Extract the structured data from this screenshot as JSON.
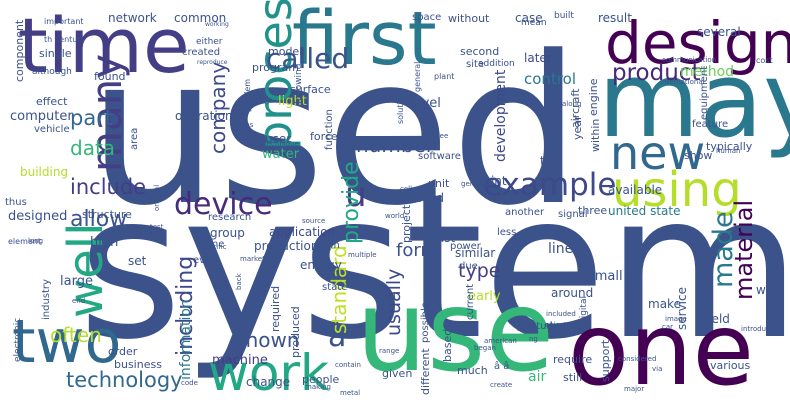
{
  "words": [
    {
      "text": "used",
      "color": "#3b528b",
      "name": "word-used"
    },
    {
      "text": "system",
      "color": "#3b528b",
      "name": "word-system"
    },
    {
      "text": "time",
      "color": "#433e85",
      "name": "word-time"
    },
    {
      "text": "first",
      "color": "#2a788e",
      "name": "word-first"
    },
    {
      "text": "may",
      "color": "#2a788e",
      "name": "word-may"
    },
    {
      "text": "design",
      "color": "#440154",
      "name": "word-design"
    },
    {
      "text": "one",
      "color": "#440154",
      "name": "word-one"
    },
    {
      "text": "use",
      "color": "#35b779",
      "name": "word-use"
    },
    {
      "text": "two",
      "color": "#31688e",
      "name": "word-two"
    },
    {
      "text": "work",
      "color": "#22a884",
      "name": "word-work"
    },
    {
      "text": "new",
      "color": "#31688e",
      "name": "word-new"
    },
    {
      "text": "using",
      "color": "#b5de2b",
      "name": "word-using"
    },
    {
      "text": "process",
      "color": "#21918c",
      "name": "word-process"
    },
    {
      "text": "well",
      "color": "#22a884",
      "name": "word-well"
    },
    {
      "text": "many",
      "color": "#433e85",
      "name": "word-many"
    },
    {
      "text": "example",
      "color": "#3e4989",
      "name": "word-example"
    },
    {
      "text": "device",
      "color": "#472a7a",
      "name": "word-device"
    },
    {
      "text": "called",
      "color": "#3b528b",
      "name": "word-called"
    },
    {
      "text": "product",
      "color": "#482878",
      "name": "word-product"
    },
    {
      "text": "material",
      "color": "#440154",
      "name": "word-material"
    },
    {
      "text": "made",
      "color": "#2a788e",
      "name": "word-made"
    },
    {
      "text": "technology",
      "color": "#31688e",
      "name": "word-technology"
    },
    {
      "text": "known",
      "color": "#3b528b",
      "name": "word-known"
    },
    {
      "text": "â",
      "color": "#3b528b",
      "name": "word-a-circumflex"
    },
    {
      "text": "include",
      "color": "#433e85",
      "name": "word-include"
    },
    {
      "text": "allow",
      "color": "#3b528b",
      "name": "word-allow"
    },
    {
      "text": "part",
      "color": "#31688e",
      "name": "word-part"
    },
    {
      "text": "data",
      "color": "#35b779",
      "name": "word-data"
    },
    {
      "text": "often",
      "color": "#b5de2b",
      "name": "word-often"
    },
    {
      "text": "company",
      "color": "#3e4989",
      "name": "word-company"
    },
    {
      "text": "u",
      "color": "#433e85",
      "name": "word-u"
    },
    {
      "text": "including",
      "color": "#3e4989",
      "name": "word-including"
    },
    {
      "text": "number",
      "color": "#3b528b",
      "name": "word-number"
    },
    {
      "text": "provide",
      "color": "#22a884",
      "name": "word-provide"
    },
    {
      "text": "standard",
      "color": "#bddf26",
      "name": "word-standard"
    },
    {
      "text": "usually",
      "color": "#3e4989",
      "name": "word-usually"
    },
    {
      "text": "form",
      "color": "#3b528b",
      "name": "word-form"
    },
    {
      "text": "type",
      "color": "#433e85",
      "name": "word-type"
    },
    {
      "text": "control",
      "color": "#2a788e",
      "name": "word-control"
    },
    {
      "text": "method",
      "color": "#6ece58",
      "name": "word-method"
    },
    {
      "text": "development",
      "color": "#3e4989",
      "name": "word-development"
    },
    {
      "text": "information",
      "color": "#2a788e",
      "name": "word-information"
    },
    {
      "text": "machine",
      "color": "#433e85",
      "name": "word-machine"
    },
    {
      "text": "production",
      "color": "#3b528b",
      "name": "word-production"
    },
    {
      "text": "application",
      "color": "#3e4989",
      "name": "word-application"
    },
    {
      "text": "united state",
      "color": "#2a788e",
      "name": "word-united-state"
    },
    {
      "text": "network",
      "color": "#3b528b",
      "name": "word-network"
    },
    {
      "text": "common",
      "color": "#3b528b",
      "name": "word-common"
    },
    {
      "text": "model",
      "color": "#3e4989",
      "name": "word-model"
    },
    {
      "text": "without",
      "color": "#3b528b",
      "name": "word-without"
    },
    {
      "text": "case",
      "color": "#3b528b",
      "name": "word-case"
    },
    {
      "text": "result",
      "color": "#3b528b",
      "name": "word-result"
    },
    {
      "text": "several",
      "color": "#3b528b",
      "name": "word-several"
    },
    {
      "text": "space",
      "color": "#3b528b",
      "name": "word-space"
    },
    {
      "text": "later",
      "color": "#3e4989",
      "name": "word-later"
    },
    {
      "text": "program",
      "color": "#3b528b",
      "name": "word-program"
    },
    {
      "text": "created",
      "color": "#3b528b",
      "name": "word-created"
    },
    {
      "text": "found",
      "color": "#3b528b",
      "name": "word-found"
    },
    {
      "text": "effect",
      "color": "#3b528b",
      "name": "word-effect"
    },
    {
      "text": "computer",
      "color": "#3b528b",
      "name": "word-computer"
    },
    {
      "text": "vehicle",
      "color": "#3b528b",
      "name": "word-vehicle"
    },
    {
      "text": "operation",
      "color": "#3b528b",
      "name": "word-operation"
    },
    {
      "text": "light",
      "color": "#b5de2b",
      "name": "word-light"
    },
    {
      "text": "surface",
      "color": "#3b528b",
      "name": "word-surface"
    },
    {
      "text": "level",
      "color": "#3b528b",
      "name": "word-level"
    },
    {
      "text": "user",
      "color": "#3b528b",
      "name": "word-user"
    },
    {
      "text": "water",
      "color": "#35b779",
      "name": "word-water"
    },
    {
      "text": "building",
      "color": "#b5de2b",
      "name": "word-building"
    },
    {
      "text": "designed",
      "color": "#3b528b",
      "name": "word-designed"
    },
    {
      "text": "structure",
      "color": "#3b528b",
      "name": "word-structure"
    },
    {
      "text": "research",
      "color": "#3b528b",
      "name": "word-research"
    },
    {
      "text": "group",
      "color": "#3b528b",
      "name": "word-group"
    },
    {
      "text": "high",
      "color": "#3b528b",
      "name": "word-high"
    },
    {
      "text": "set",
      "color": "#3b528b",
      "name": "word-set"
    },
    {
      "text": "large",
      "color": "#3b528b",
      "name": "word-large"
    },
    {
      "text": "energy",
      "color": "#3b528b",
      "name": "word-energy"
    },
    {
      "text": "change",
      "color": "#3b528b",
      "name": "word-change"
    },
    {
      "text": "order",
      "color": "#3b528b",
      "name": "word-order"
    },
    {
      "text": "business",
      "color": "#3b528b",
      "name": "word-business"
    },
    {
      "text": "people",
      "color": "#3b528b",
      "name": "word-people"
    },
    {
      "text": "given",
      "color": "#3b528b",
      "name": "word-given"
    },
    {
      "text": "much",
      "color": "#3b528b",
      "name": "word-much"
    },
    {
      "text": "air",
      "color": "#35b779",
      "name": "word-air"
    },
    {
      "text": "support",
      "color": "#3b528b",
      "name": "word-support"
    },
    {
      "text": "various",
      "color": "#3b528b",
      "name": "word-various"
    },
    {
      "text": "field",
      "color": "#3b528b",
      "name": "word-field"
    },
    {
      "text": "make",
      "color": "#3b528b",
      "name": "word-make"
    },
    {
      "text": "way",
      "color": "#3b528b",
      "name": "word-way"
    },
    {
      "text": "service",
      "color": "#3b528b",
      "name": "word-service"
    },
    {
      "text": "developed",
      "color": "#3b528b",
      "name": "word-developed"
    },
    {
      "text": "around",
      "color": "#3b528b",
      "name": "word-around"
    },
    {
      "text": "small",
      "color": "#3b528b",
      "name": "word-small"
    },
    {
      "text": "series",
      "color": "#3b528b",
      "name": "word-series"
    },
    {
      "text": "early",
      "color": "#b5de2b",
      "name": "word-early"
    },
    {
      "text": "line",
      "color": "#3b528b",
      "name": "word-line"
    },
    {
      "text": "similar",
      "color": "#3b528b",
      "name": "word-similar"
    },
    {
      "text": "must",
      "color": "#3b528b",
      "name": "word-must"
    },
    {
      "text": "due",
      "color": "#3b528b",
      "name": "word-due"
    },
    {
      "text": "point",
      "color": "#3b528b",
      "name": "word-point"
    },
    {
      "text": "tool",
      "color": "#3b528b",
      "name": "word-tool"
    },
    {
      "text": "need",
      "color": "#3b528b",
      "name": "word-need"
    },
    {
      "text": "unit",
      "color": "#3b528b",
      "name": "word-unit"
    },
    {
      "text": "project",
      "color": "#3b528b",
      "name": "word-project"
    },
    {
      "text": "available",
      "color": "#3b528b",
      "name": "word-available"
    },
    {
      "text": "show",
      "color": "#3b528b",
      "name": "word-show"
    },
    {
      "text": "year",
      "color": "#3b528b",
      "name": "word-year"
    },
    {
      "text": "within",
      "color": "#3b528b",
      "name": "word-within"
    },
    {
      "text": "three",
      "color": "#3b528b",
      "name": "word-three"
    },
    {
      "text": "another",
      "color": "#3b528b",
      "name": "word-another"
    },
    {
      "text": "signal",
      "color": "#3b528b",
      "name": "word-signal"
    },
    {
      "text": "required",
      "color": "#3b528b",
      "name": "word-required"
    },
    {
      "text": "produced",
      "color": "#3b528b",
      "name": "word-produced"
    },
    {
      "text": "power",
      "color": "#3b528b",
      "name": "word-power"
    },
    {
      "text": "current",
      "color": "#3b528b",
      "name": "word-current"
    },
    {
      "text": "based",
      "color": "#3b528b",
      "name": "word-based"
    },
    {
      "text": "study",
      "color": "#3b528b",
      "name": "word-study"
    },
    {
      "text": "term",
      "color": "#3b528b",
      "name": "word-term"
    },
    {
      "text": "state",
      "color": "#3b528b",
      "name": "word-state"
    },
    {
      "text": "less",
      "color": "#3b528b",
      "name": "word-less"
    },
    {
      "text": "different",
      "color": "#3b528b",
      "name": "word-different"
    },
    {
      "text": "possible",
      "color": "#3b528b",
      "name": "word-possible"
    },
    {
      "text": "require",
      "color": "#3b528b",
      "name": "word-require"
    },
    {
      "text": "still",
      "color": "#3b528b",
      "name": "word-still"
    },
    {
      "text": "name",
      "color": "#3b528b",
      "name": "word-name"
    },
    {
      "text": "even",
      "color": "#3b528b",
      "name": "word-even"
    },
    {
      "text": "area",
      "color": "#3b528b",
      "name": "word-area"
    },
    {
      "text": "component",
      "color": "#3b528b",
      "name": "word-component"
    },
    {
      "text": "single",
      "color": "#3b528b",
      "name": "word-single"
    },
    {
      "text": "although",
      "color": "#3b528b",
      "name": "word-although"
    },
    {
      "text": "second",
      "color": "#3b528b",
      "name": "word-second"
    },
    {
      "text": "site",
      "color": "#3b528b",
      "name": "word-site"
    },
    {
      "text": "built",
      "color": "#3b528b",
      "name": "word-built"
    },
    {
      "text": "mean",
      "color": "#3b528b",
      "name": "word-mean"
    },
    {
      "text": "addition",
      "color": "#3b528b",
      "name": "word-addition"
    },
    {
      "text": "feature",
      "color": "#3b528b",
      "name": "word-feature"
    },
    {
      "text": "equipment",
      "color": "#3b528b",
      "name": "word-equipment"
    },
    {
      "text": "typically",
      "color": "#3b528b",
      "name": "word-typically"
    },
    {
      "text": "software",
      "color": "#3b528b",
      "name": "word-software"
    },
    {
      "text": "force",
      "color": "#3b528b",
      "name": "word-force"
    },
    {
      "text": "function",
      "color": "#3b528b",
      "name": "word-function"
    },
    {
      "text": "following",
      "color": "#3b528b",
      "name": "word-following"
    },
    {
      "text": "engine",
      "color": "#3b528b",
      "name": "word-engine"
    },
    {
      "text": "aircraft",
      "color": "#3b528b",
      "name": "word-aircraft"
    },
    {
      "text": "industry",
      "color": "#3b528b",
      "name": "word-industry"
    },
    {
      "text": "thus",
      "color": "#3b528b",
      "name": "word-thus"
    },
    {
      "text": "important",
      "color": "#3b528b",
      "name": "word-important"
    },
    {
      "text": "th century",
      "color": "#3b528b",
      "name": "word-th-century"
    },
    {
      "text": "either",
      "color": "#3b528b",
      "name": "word-either"
    },
    {
      "text": "general",
      "color": "#3b528b",
      "name": "word-general"
    },
    {
      "text": "communication",
      "color": "#3b528b",
      "name": "word-communication"
    },
    {
      "text": "cost",
      "color": "#3b528b",
      "name": "word-cost"
    },
    {
      "text": "international",
      "color": "#3b528b",
      "name": "word-international"
    },
    {
      "text": "solution",
      "color": "#3b528b",
      "name": "word-solution"
    },
    {
      "text": "plant",
      "color": "#3b528b",
      "name": "word-plant"
    },
    {
      "text": "technique",
      "color": "#3b528b",
      "name": "word-technique"
    },
    {
      "text": "problem",
      "color": "#3b528b",
      "name": "word-problem"
    },
    {
      "text": "element",
      "color": "#3b528b",
      "name": "word-element"
    },
    {
      "text": "electronic",
      "color": "#3b528b",
      "name": "word-electronic"
    },
    {
      "text": "digital",
      "color": "#3b528b",
      "name": "word-digital"
    },
    {
      "text": "multiple",
      "color": "#3b528b",
      "name": "word-multiple"
    },
    {
      "text": "specific",
      "color": "#3b528b",
      "name": "word-specific"
    },
    {
      "text": "market",
      "color": "#3b528b",
      "name": "word-market"
    },
    {
      "text": "modern",
      "color": "#3b528b",
      "name": "word-modern"
    },
    {
      "text": "world",
      "color": "#3b528b",
      "name": "word-world"
    },
    {
      "text": "generally",
      "color": "#3b528b",
      "name": "word-generally"
    },
    {
      "text": "image",
      "color": "#3b528b",
      "name": "word-image"
    },
    {
      "text": "object",
      "color": "#3b528b",
      "name": "word-object"
    },
    {
      "text": "included",
      "color": "#3b528b",
      "name": "word-included"
    },
    {
      "text": "american",
      "color": "#3b528b",
      "name": "word-american"
    },
    {
      "text": "file",
      "color": "#3b528b",
      "name": "word-file"
    },
    {
      "text": "began",
      "color": "#3b528b",
      "name": "word-began"
    },
    {
      "text": "contain",
      "color": "#3b528b",
      "name": "word-contain"
    },
    {
      "text": "making",
      "color": "#3b528b",
      "name": "word-making"
    },
    {
      "text": "code",
      "color": "#3b528b",
      "name": "word-code"
    },
    {
      "text": "metal",
      "color": "#3b528b",
      "name": "word-metal"
    },
    {
      "text": "create",
      "color": "#3b528b",
      "name": "word-create"
    },
    {
      "text": "major",
      "color": "#3b528b",
      "name": "word-major"
    },
    {
      "text": "via",
      "color": "#3b528b",
      "name": "word-via"
    },
    {
      "text": "range",
      "color": "#3b528b",
      "name": "word-range"
    },
    {
      "text": "introduced",
      "color": "#3b528b",
      "name": "word-introduced"
    },
    {
      "text": "back",
      "color": "#3b528b",
      "name": "word-back"
    },
    {
      "text": "car",
      "color": "#3b528b",
      "name": "word-car"
    },
    {
      "text": "end",
      "color": "#3b528b",
      "name": "word-end"
    },
    {
      "text": "source",
      "color": "#3b528b",
      "name": "word-source"
    },
    {
      "text": "cell",
      "color": "#3b528b",
      "name": "word-cell"
    },
    {
      "text": "see",
      "color": "#3b528b",
      "name": "word-see"
    },
    {
      "text": "along",
      "color": "#3b528b",
      "name": "word-along"
    },
    {
      "text": "gas",
      "color": "#3b528b",
      "name": "word-gas"
    },
    {
      "text": "human",
      "color": "#3b528b",
      "name": "word-human"
    },
    {
      "text": "long",
      "color": "#3b528b",
      "name": "word-long"
    },
    {
      "text": "test",
      "color": "#3b528b",
      "name": "word-test"
    },
    {
      "text": "working",
      "color": "#3b528b",
      "name": "word-working"
    },
    {
      "text": "reproduce",
      "color": "#3b528b",
      "name": "word-reproduce"
    },
    {
      "text": "original",
      "color": "#3b528b",
      "name": "word-original"
    },
    {
      "text": "ng",
      "color": "#3b528b",
      "name": "word-ng"
    },
    {
      "text": "â â",
      "color": "#3b528b",
      "name": "word-a-a"
    },
    {
      "text": "considered",
      "color": "#3b528b",
      "name": "word-considered"
    }
  ]
}
